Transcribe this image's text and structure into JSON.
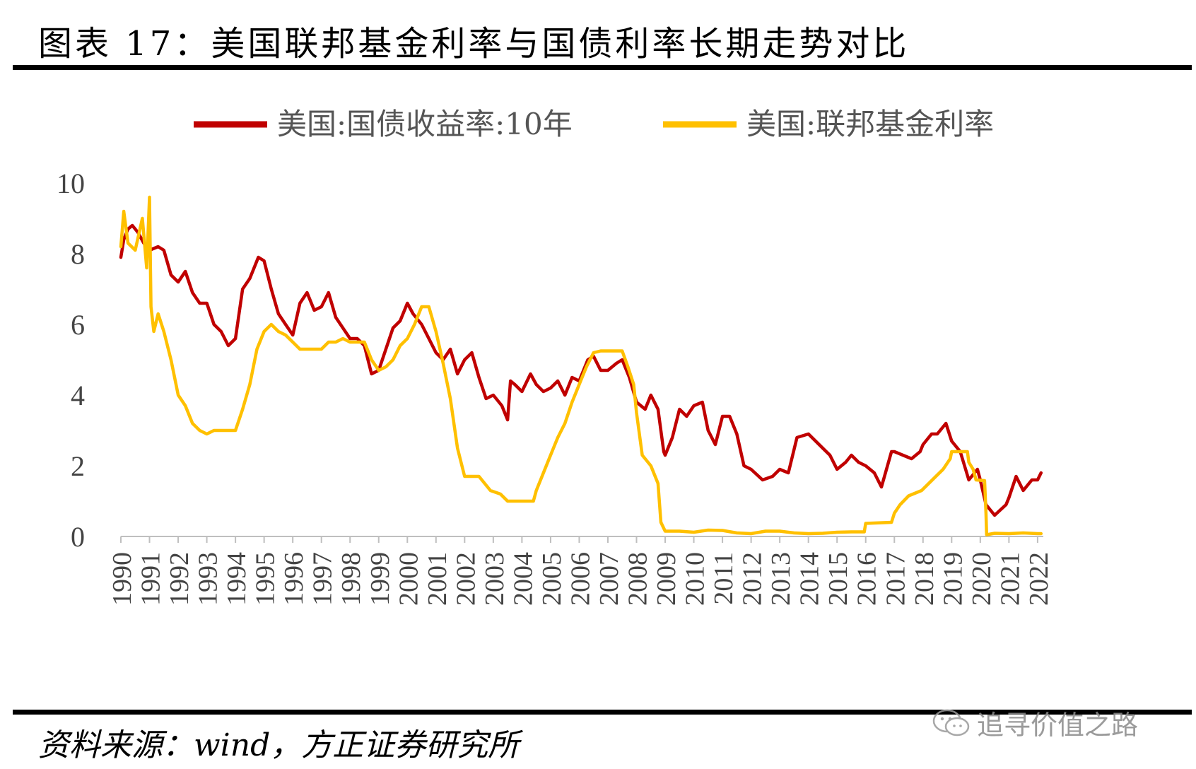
{
  "header": {
    "title": "图表 17：美国联邦基金利率与国债利率长期走势对比"
  },
  "footer": {
    "source": "资料来源：wind，方正证券研究所",
    "watermark": "追寻价值之路"
  },
  "chart_data": {
    "type": "line",
    "title": "图表 17：美国联邦基金利率与国债利率长期走势对比",
    "xlabel": "",
    "ylabel": "",
    "xlim": [
      1990,
      2022.2
    ],
    "ylim": [
      0,
      10
    ],
    "y_ticks": [
      "0",
      "2",
      "4",
      "6",
      "8",
      "10"
    ],
    "x_ticks": [
      "1990",
      "1991",
      "1992",
      "1993",
      "1994",
      "1995",
      "1996",
      "1997",
      "1998",
      "1999",
      "2000",
      "2001",
      "2002",
      "2003",
      "2004",
      "2005",
      "2006",
      "2007",
      "2008",
      "2009",
      "2010",
      "2011",
      "2012",
      "2013",
      "2014",
      "2015",
      "2016",
      "2017",
      "2018",
      "2019",
      "2020",
      "2021",
      "2022"
    ],
    "grid": false,
    "legend": "top",
    "series": [
      {
        "name": "美国:国债收益率:10年",
        "color": "#C00000",
        "points": [
          [
            1990.0,
            7.9
          ],
          [
            1990.1,
            8.4
          ],
          [
            1990.25,
            8.7
          ],
          [
            1990.4,
            8.8
          ],
          [
            1990.6,
            8.6
          ],
          [
            1990.8,
            8.3
          ],
          [
            1991.0,
            8.1
          ],
          [
            1991.3,
            8.2
          ],
          [
            1991.5,
            8.1
          ],
          [
            1991.75,
            7.4
          ],
          [
            1992.0,
            7.2
          ],
          [
            1992.25,
            7.5
          ],
          [
            1992.5,
            6.9
          ],
          [
            1992.75,
            6.6
          ],
          [
            1993.0,
            6.6
          ],
          [
            1993.25,
            6.0
          ],
          [
            1993.5,
            5.8
          ],
          [
            1993.75,
            5.4
          ],
          [
            1994.0,
            5.6
          ],
          [
            1994.25,
            7.0
          ],
          [
            1994.5,
            7.3
          ],
          [
            1994.8,
            7.9
          ],
          [
            1995.0,
            7.8
          ],
          [
            1995.25,
            7.0
          ],
          [
            1995.5,
            6.3
          ],
          [
            1995.75,
            6.0
          ],
          [
            1996.0,
            5.7
          ],
          [
            1996.25,
            6.6
          ],
          [
            1996.5,
            6.9
          ],
          [
            1996.75,
            6.4
          ],
          [
            1997.0,
            6.5
          ],
          [
            1997.25,
            6.9
          ],
          [
            1997.5,
            6.2
          ],
          [
            1997.75,
            5.9
          ],
          [
            1998.0,
            5.6
          ],
          [
            1998.25,
            5.6
          ],
          [
            1998.5,
            5.4
          ],
          [
            1998.75,
            4.6
          ],
          [
            1999.0,
            4.7
          ],
          [
            1999.25,
            5.3
          ],
          [
            1999.5,
            5.9
          ],
          [
            1999.75,
            6.1
          ],
          [
            2000.0,
            6.6
          ],
          [
            2000.2,
            6.3
          ],
          [
            2000.5,
            6.0
          ],
          [
            2000.75,
            5.6
          ],
          [
            2001.0,
            5.2
          ],
          [
            2001.25,
            5.0
          ],
          [
            2001.5,
            5.3
          ],
          [
            2001.75,
            4.6
          ],
          [
            2002.0,
            5.0
          ],
          [
            2002.25,
            5.2
          ],
          [
            2002.5,
            4.5
          ],
          [
            2002.75,
            3.9
          ],
          [
            2003.0,
            4.0
          ],
          [
            2003.3,
            3.7
          ],
          [
            2003.5,
            3.3
          ],
          [
            2003.6,
            4.4
          ],
          [
            2003.75,
            4.3
          ],
          [
            2004.0,
            4.1
          ],
          [
            2004.3,
            4.6
          ],
          [
            2004.5,
            4.3
          ],
          [
            2004.75,
            4.1
          ],
          [
            2005.0,
            4.2
          ],
          [
            2005.25,
            4.4
          ],
          [
            2005.5,
            4.0
          ],
          [
            2005.75,
            4.5
          ],
          [
            2006.0,
            4.4
          ],
          [
            2006.3,
            5.0
          ],
          [
            2006.5,
            5.1
          ],
          [
            2006.75,
            4.7
          ],
          [
            2007.0,
            4.7
          ],
          [
            2007.3,
            4.9
          ],
          [
            2007.5,
            5.0
          ],
          [
            2007.75,
            4.5
          ],
          [
            2008.0,
            3.8
          ],
          [
            2008.3,
            3.6
          ],
          [
            2008.5,
            4.0
          ],
          [
            2008.75,
            3.6
          ],
          [
            2008.95,
            2.4
          ],
          [
            2009.0,
            2.3
          ],
          [
            2009.25,
            2.8
          ],
          [
            2009.5,
            3.6
          ],
          [
            2009.75,
            3.4
          ],
          [
            2010.0,
            3.7
          ],
          [
            2010.3,
            3.8
          ],
          [
            2010.5,
            3.0
          ],
          [
            2010.75,
            2.6
          ],
          [
            2011.0,
            3.4
          ],
          [
            2011.25,
            3.4
          ],
          [
            2011.5,
            2.9
          ],
          [
            2011.75,
            2.0
          ],
          [
            2012.0,
            1.9
          ],
          [
            2012.4,
            1.6
          ],
          [
            2012.75,
            1.7
          ],
          [
            2013.0,
            1.9
          ],
          [
            2013.3,
            1.8
          ],
          [
            2013.6,
            2.8
          ],
          [
            2014.0,
            2.9
          ],
          [
            2014.5,
            2.5
          ],
          [
            2014.75,
            2.3
          ],
          [
            2015.0,
            1.9
          ],
          [
            2015.3,
            2.1
          ],
          [
            2015.5,
            2.3
          ],
          [
            2015.75,
            2.1
          ],
          [
            2016.0,
            2.0
          ],
          [
            2016.3,
            1.8
          ],
          [
            2016.55,
            1.4
          ],
          [
            2016.9,
            2.4
          ],
          [
            2017.0,
            2.4
          ],
          [
            2017.3,
            2.3
          ],
          [
            2017.6,
            2.2
          ],
          [
            2017.9,
            2.4
          ],
          [
            2018.0,
            2.6
          ],
          [
            2018.3,
            2.9
          ],
          [
            2018.5,
            2.9
          ],
          [
            2018.8,
            3.2
          ],
          [
            2019.0,
            2.7
          ],
          [
            2019.3,
            2.4
          ],
          [
            2019.6,
            1.6
          ],
          [
            2019.9,
            1.9
          ],
          [
            2020.0,
            1.6
          ],
          [
            2020.2,
            0.9
          ],
          [
            2020.5,
            0.6
          ],
          [
            2020.9,
            0.9
          ],
          [
            2021.0,
            1.1
          ],
          [
            2021.25,
            1.7
          ],
          [
            2021.5,
            1.3
          ],
          [
            2021.8,
            1.6
          ],
          [
            2022.0,
            1.6
          ],
          [
            2022.12,
            1.8
          ]
        ]
      },
      {
        "name": "美国:联邦基金利率",
        "color": "#FFC000",
        "points": [
          [
            1990.0,
            8.2
          ],
          [
            1990.1,
            9.2
          ],
          [
            1990.25,
            8.3
          ],
          [
            1990.5,
            8.1
          ],
          [
            1990.75,
            9.0
          ],
          [
            1990.9,
            7.6
          ],
          [
            1991.0,
            9.6
          ],
          [
            1991.05,
            6.5
          ],
          [
            1991.15,
            5.8
          ],
          [
            1991.3,
            6.3
          ],
          [
            1991.5,
            5.8
          ],
          [
            1991.75,
            5.0
          ],
          [
            1992.0,
            4.0
          ],
          [
            1992.25,
            3.7
          ],
          [
            1992.5,
            3.2
          ],
          [
            1992.75,
            3.0
          ],
          [
            1993.0,
            2.9
          ],
          [
            1993.25,
            3.0
          ],
          [
            1993.5,
            3.0
          ],
          [
            1993.75,
            3.0
          ],
          [
            1994.0,
            3.0
          ],
          [
            1994.25,
            3.6
          ],
          [
            1994.5,
            4.3
          ],
          [
            1994.75,
            5.3
          ],
          [
            1995.0,
            5.8
          ],
          [
            1995.25,
            6.0
          ],
          [
            1995.5,
            5.8
          ],
          [
            1995.75,
            5.7
          ],
          [
            1996.0,
            5.5
          ],
          [
            1996.25,
            5.3
          ],
          [
            1996.5,
            5.3
          ],
          [
            1996.75,
            5.3
          ],
          [
            1997.0,
            5.3
          ],
          [
            1997.25,
            5.5
          ],
          [
            1997.5,
            5.5
          ],
          [
            1997.75,
            5.6
          ],
          [
            1998.0,
            5.5
          ],
          [
            1998.5,
            5.5
          ],
          [
            1998.75,
            5.0
          ],
          [
            1999.0,
            4.7
          ],
          [
            1999.25,
            4.8
          ],
          [
            1999.5,
            5.0
          ],
          [
            1999.75,
            5.4
          ],
          [
            2000.0,
            5.6
          ],
          [
            2000.25,
            6.0
          ],
          [
            2000.5,
            6.5
          ],
          [
            2000.75,
            6.5
          ],
          [
            2001.0,
            5.8
          ],
          [
            2001.25,
            4.9
          ],
          [
            2001.5,
            3.9
          ],
          [
            2001.75,
            2.5
          ],
          [
            2002.0,
            1.7
          ],
          [
            2002.5,
            1.7
          ],
          [
            2002.9,
            1.3
          ],
          [
            2003.25,
            1.2
          ],
          [
            2003.5,
            1.0
          ],
          [
            2004.0,
            1.0
          ],
          [
            2004.4,
            1.0
          ],
          [
            2004.5,
            1.3
          ],
          [
            2004.75,
            1.8
          ],
          [
            2005.0,
            2.3
          ],
          [
            2005.25,
            2.8
          ],
          [
            2005.5,
            3.2
          ],
          [
            2005.75,
            3.8
          ],
          [
            2006.0,
            4.3
          ],
          [
            2006.25,
            4.8
          ],
          [
            2006.5,
            5.2
          ],
          [
            2006.75,
            5.25
          ],
          [
            2007.0,
            5.25
          ],
          [
            2007.5,
            5.25
          ],
          [
            2007.7,
            4.8
          ],
          [
            2007.9,
            4.3
          ],
          [
            2008.0,
            3.5
          ],
          [
            2008.2,
            2.3
          ],
          [
            2008.5,
            2.0
          ],
          [
            2008.75,
            1.5
          ],
          [
            2008.85,
            0.4
          ],
          [
            2009.0,
            0.15
          ],
          [
            2009.5,
            0.15
          ],
          [
            2010.0,
            0.12
          ],
          [
            2010.5,
            0.18
          ],
          [
            2011.0,
            0.17
          ],
          [
            2011.5,
            0.1
          ],
          [
            2012.0,
            0.08
          ],
          [
            2012.5,
            0.15
          ],
          [
            2013.0,
            0.15
          ],
          [
            2013.5,
            0.1
          ],
          [
            2014.0,
            0.08
          ],
          [
            2014.5,
            0.09
          ],
          [
            2015.0,
            0.12
          ],
          [
            2015.5,
            0.13
          ],
          [
            2015.95,
            0.13
          ],
          [
            2016.0,
            0.37
          ],
          [
            2016.9,
            0.4
          ],
          [
            2017.0,
            0.66
          ],
          [
            2017.2,
            0.9
          ],
          [
            2017.5,
            1.15
          ],
          [
            2017.95,
            1.3
          ],
          [
            2018.2,
            1.5
          ],
          [
            2018.45,
            1.7
          ],
          [
            2018.7,
            1.9
          ],
          [
            2018.95,
            2.2
          ],
          [
            2019.0,
            2.4
          ],
          [
            2019.55,
            2.4
          ],
          [
            2019.6,
            2.1
          ],
          [
            2019.75,
            1.9
          ],
          [
            2019.85,
            1.6
          ],
          [
            2020.15,
            1.58
          ],
          [
            2020.2,
            0.65
          ],
          [
            2020.22,
            0.05
          ],
          [
            2020.5,
            0.09
          ],
          [
            2021.0,
            0.08
          ],
          [
            2021.5,
            0.1
          ],
          [
            2022.0,
            0.08
          ],
          [
            2022.12,
            0.08
          ]
        ]
      }
    ]
  }
}
